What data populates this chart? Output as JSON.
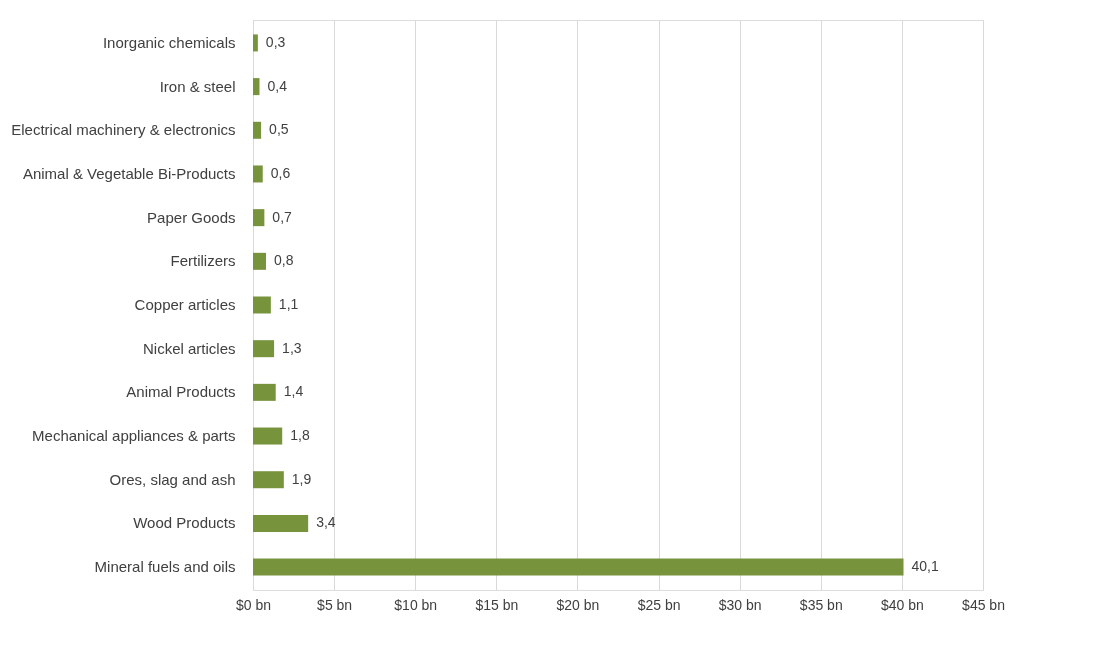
{
  "chart_data": {
    "type": "bar",
    "orientation": "horizontal",
    "categories": [
      "Inorganic chemicals",
      "Iron & steel",
      "Electrical machinery & electronics",
      "Animal & Vegetable Bi-Products",
      "Paper Goods",
      "Fertilizers",
      "Copper articles",
      "Nickel articles",
      "Animal Products",
      "Mechanical appliances & parts",
      "Ores, slag and ash",
      "Wood Products",
      "Mineral fuels and oils"
    ],
    "values": [
      0.3,
      0.4,
      0.5,
      0.6,
      0.7,
      0.8,
      1.1,
      1.3,
      1.4,
      1.8,
      1.9,
      3.4,
      40.1
    ],
    "value_labels": [
      "0,3",
      "0,4",
      "0,5",
      "0,6",
      "0,7",
      "0,8",
      "1,1",
      "1,3",
      "1,4",
      "1,8",
      "1,9",
      "3,4",
      "40,1"
    ],
    "color": "#77933c",
    "xlim": [
      0,
      45
    ],
    "xticks": [
      {
        "value": 0,
        "label": "$0 bn"
      },
      {
        "value": 5,
        "label": "$5 bn"
      },
      {
        "value": 10,
        "label": "$10 bn"
      },
      {
        "value": 15,
        "label": "$15 bn"
      },
      {
        "value": 20,
        "label": "$20 bn"
      },
      {
        "value": 25,
        "label": "$25 bn"
      },
      {
        "value": 30,
        "label": "$30 bn"
      },
      {
        "value": 35,
        "label": "$35 bn"
      },
      {
        "value": 40,
        "label": "$40 bn"
      },
      {
        "value": 45,
        "label": "$45 bn"
      }
    ],
    "grid": "x"
  }
}
